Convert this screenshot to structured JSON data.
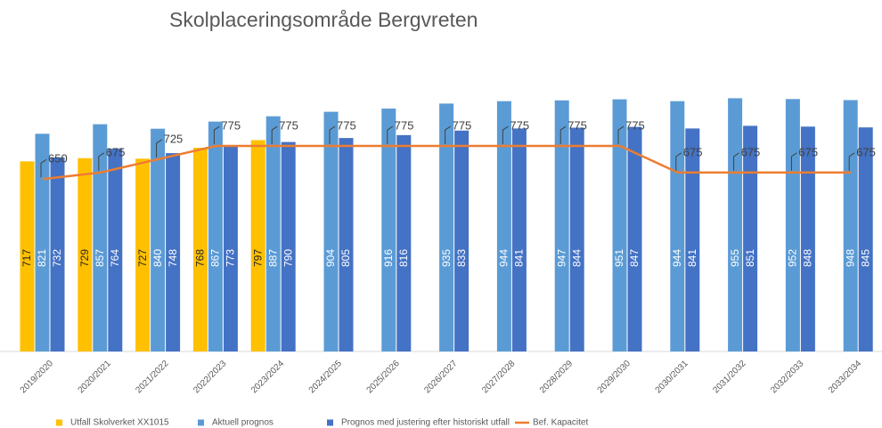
{
  "chart_data": {
    "type": "bar",
    "title": "Skolplaceringsområde Bergvreten",
    "categories": [
      "2019/2020",
      "2020/2021",
      "2021/2022",
      "2022/2023",
      "2023/2024",
      "2024/2025",
      "2025/2026",
      "2026/2027",
      "2027/2028",
      "2028/2029",
      "2029/2030",
      "2030/2031",
      "2031/2032",
      "2032/2033",
      "2033/2034"
    ],
    "series": [
      {
        "name": "Utfall Skolverket XX1015",
        "color": "#FFC000",
        "values": [
          717,
          729,
          727,
          768,
          797,
          null,
          null,
          null,
          null,
          null,
          null,
          null,
          null,
          null,
          null
        ]
      },
      {
        "name": "Aktuell prognos",
        "color": "#5B9BD5",
        "values": [
          821,
          857,
          840,
          867,
          887,
          904,
          916,
          935,
          944,
          947,
          951,
          944,
          955,
          952,
          948
        ]
      },
      {
        "name": "Prognos med justering efter historiskt utfall",
        "color": "#4472C4",
        "values": [
          732,
          764,
          748,
          773,
          790,
          805,
          816,
          833,
          841,
          844,
          847,
          841,
          851,
          848,
          845
        ]
      },
      {
        "name": "Bef. Kapacitet",
        "type": "line",
        "color": "#ED7D31",
        "values": [
          650,
          675,
          725,
          775,
          775,
          775,
          775,
          775,
          775,
          775,
          775,
          675,
          675,
          675,
          675
        ]
      }
    ],
    "ylim": [
      0,
      1000
    ]
  }
}
